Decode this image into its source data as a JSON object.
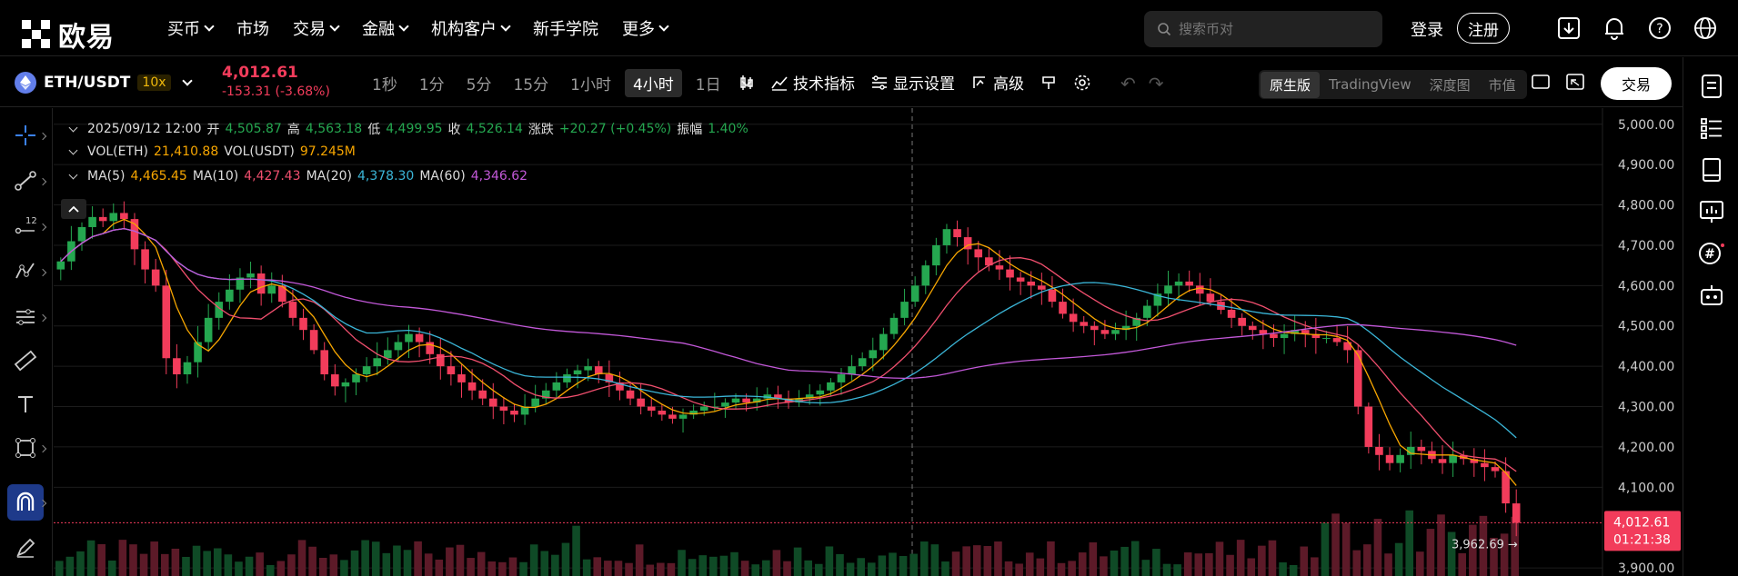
{
  "brand": {
    "logo_text": "欧易"
  },
  "nav": {
    "items": [
      {
        "label": "买币",
        "dropdown": true
      },
      {
        "label": "市场",
        "dropdown": false
      },
      {
        "label": "交易",
        "dropdown": true
      },
      {
        "label": "金融",
        "dropdown": true
      },
      {
        "label": "机构客户",
        "dropdown": true
      },
      {
        "label": "新手学院",
        "dropdown": false
      },
      {
        "label": "更多",
        "dropdown": true
      }
    ],
    "search_placeholder": "搜索币对",
    "login": "登录",
    "register": "注册"
  },
  "ticker": {
    "pair": "ETH/USDT",
    "leverage": "10x",
    "last_price": "4,012.61",
    "change": "-153.31 (-3.68%)"
  },
  "intervals": [
    "1秒",
    "1分",
    "5分",
    "15分",
    "1小时",
    "4小时",
    "1日"
  ],
  "active_interval": "4小时",
  "tools": {
    "indicators": "技术指标",
    "display": "显示设置",
    "advanced": "高级"
  },
  "view_tabs": [
    "原生版",
    "TradingView",
    "深度图",
    "市值"
  ],
  "active_view": "原生版",
  "trade_button": "交易",
  "legend": {
    "ohlc": {
      "date": "2025/09/12 12:00",
      "open_label": "开",
      "open": "4,505.87",
      "high_label": "高",
      "high": "4,563.18",
      "low_label": "低",
      "low": "4,499.95",
      "close_label": "收",
      "close": "4,526.14",
      "change_label": "涨跌",
      "change": "+20.27 (+0.45%)",
      "amp_label": "振幅",
      "amp": "1.40%"
    },
    "vol": {
      "eth_label": "VOL(ETH)",
      "eth": "21,410.88",
      "usdt_label": "VOL(USDT)",
      "usdt": "97.245M"
    },
    "ma": {
      "ma5_label": "MA(5)",
      "ma5": "4,465.45",
      "ma10_label": "MA(10)",
      "ma10": "4,427.43",
      "ma20_label": "MA(20)",
      "ma20": "4,378.30",
      "ma60_label": "MA(60)",
      "ma60": "4,346.62"
    }
  },
  "colors": {
    "up": "#25a750",
    "down": "#f23c5b",
    "ma5": "#f7a600",
    "ma10": "#f04f6e",
    "ma20": "#3bb6d8",
    "ma60": "#c258d8",
    "accent": "#1e3a8a"
  },
  "price_axis": {
    "ticks": [
      "5,000.00",
      "4,900.00",
      "4,800.00",
      "4,700.00",
      "4,600.00",
      "4,500.00",
      "4,400.00",
      "4,300.00",
      "4,200.00",
      "4,100.00",
      "3,900.00"
    ],
    "current_price": "4,012.61",
    "countdown": "01:21:38",
    "low_marker": "3,962.69"
  },
  "chart_data": {
    "type": "candlestick",
    "ylim": [
      3880,
      5040
    ],
    "ticks": [
      5000,
      4900,
      4800,
      4700,
      4600,
      4500,
      4400,
      4300,
      4200,
      4100,
      3900
    ],
    "close": [
      4660,
      4710,
      4745,
      4770,
      4760,
      4780,
      4765,
      4690,
      4640,
      4600,
      4420,
      4380,
      4410,
      4460,
      4520,
      4560,
      4590,
      4620,
      4630,
      4580,
      4600,
      4560,
      4520,
      4490,
      4440,
      4380,
      4350,
      4360,
      4380,
      4400,
      4420,
      4440,
      4460,
      4480,
      4460,
      4430,
      4400,
      4380,
      4360,
      4340,
      4320,
      4300,
      4290,
      4280,
      4300,
      4320,
      4340,
      4360,
      4380,
      4390,
      4400,
      4380,
      4360,
      4340,
      4320,
      4300,
      4290,
      4280,
      4270,
      4280,
      4290,
      4300,
      4300,
      4310,
      4320,
      4310,
      4320,
      4330,
      4320,
      4310,
      4320,
      4330,
      4340,
      4360,
      4380,
      4400,
      4420,
      4440,
      4480,
      4520,
      4560,
      4600,
      4650,
      4700,
      4740,
      4720,
      4690,
      4670,
      4650,
      4640,
      4620,
      4610,
      4600,
      4590,
      4560,
      4530,
      4510,
      4500,
      4490,
      4480,
      4490,
      4500,
      4520,
      4550,
      4580,
      4600,
      4610,
      4600,
      4580,
      4560,
      4540,
      4520,
      4500,
      4490,
      4480,
      4470,
      4480,
      4490,
      4480,
      4470,
      4470,
      4460,
      4440,
      4300,
      4200,
      4180,
      4160,
      4180,
      4200,
      4190,
      4170,
      4160,
      4180,
      4170,
      4160,
      4150,
      4140,
      4060,
      4012
    ]
  }
}
